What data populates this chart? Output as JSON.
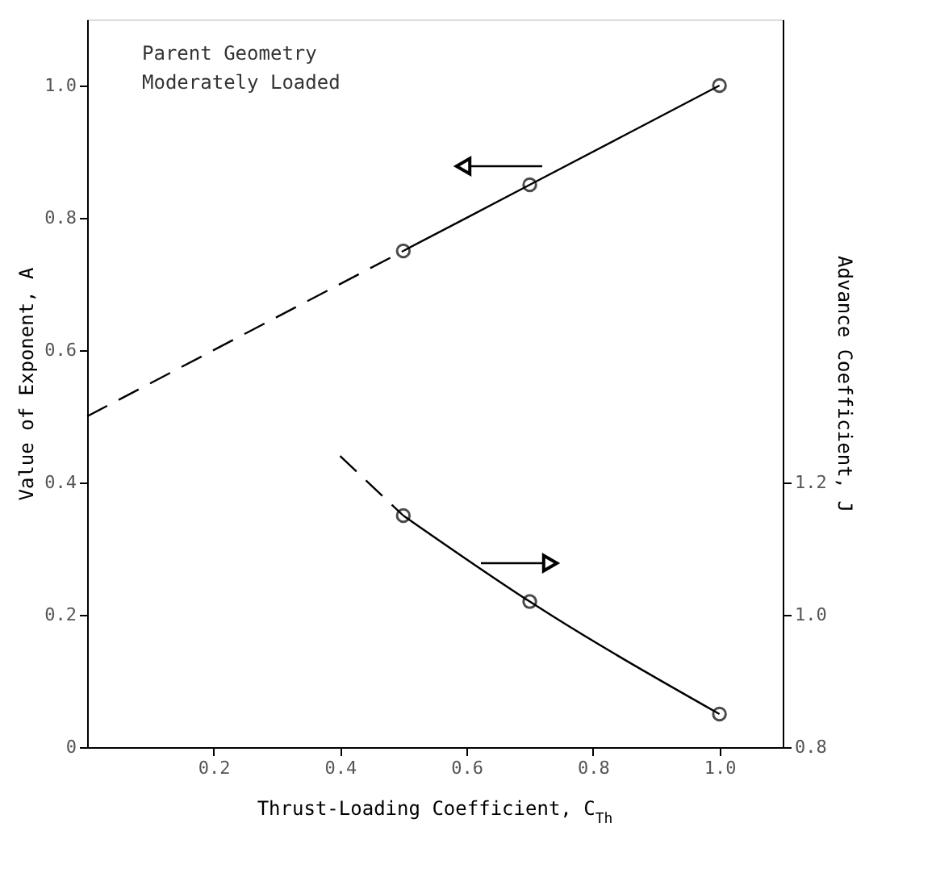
{
  "chart_data": {
    "type": "line",
    "xlabel": "Thrust-Loading Coefficient, C$_{Th}$",
    "ylabel": "Value of Exponent, A",
    "y2label": "Advance Coefficient, J",
    "annotations": [
      "Parent Geometry",
      "Moderately Loaded"
    ],
    "series": [
      {
        "x": [
          0.0,
          0.5
        ],
        "values": [
          0.5,
          0.75
        ],
        "color": "#000000",
        "line_style": "dashed"
      },
      {
        "x": [
          0.5,
          0.7,
          1.0
        ],
        "values": [
          0.75,
          0.85,
          1.0
        ],
        "color": "#000000",
        "line_style": "solid",
        "marker": "circle"
      },
      {
        "x": [
          0.4,
          0.5
        ],
        "values": [
          1.24,
          1.15
        ],
        "color": "#000000",
        "line_style": "dashed",
        "axis": "y2"
      },
      {
        "x": [
          0.5,
          0.7,
          1.0
        ],
        "values": [
          1.15,
          1.02,
          0.85
        ],
        "color": "#000000",
        "line_style": "solid",
        "marker": "circle",
        "axis": "y2"
      }
    ],
    "xlim": [
      0,
      1.1
    ],
    "xticks": [
      {
        "value": 0.2,
        "label": "0.2"
      },
      {
        "value": 0.4,
        "label": "0.4"
      },
      {
        "value": 0.6,
        "label": "0.6"
      },
      {
        "value": 0.8,
        "label": "0.8"
      },
      {
        "value": 1.0,
        "label": "1.0"
      }
    ],
    "ylim": [
      0,
      1.1
    ],
    "yticks": [
      {
        "value": 0,
        "label": "0"
      },
      {
        "value": 0.2,
        "label": "0.2"
      },
      {
        "value": 0.4,
        "label": "0.4"
      },
      {
        "value": 0.6,
        "label": "0.6"
      },
      {
        "value": 0.8,
        "label": "0.8"
      },
      {
        "value": 1.0,
        "label": "1.0"
      }
    ],
    "y2lim": [
      0.8,
      1.9
    ],
    "y2ticks": [
      {
        "value": 0.8,
        "label": "0.8"
      },
      {
        "value": 1.0,
        "label": "1.0"
      },
      {
        "value": 1.2,
        "label": "1.2"
      }
    ],
    "grid": false
  }
}
